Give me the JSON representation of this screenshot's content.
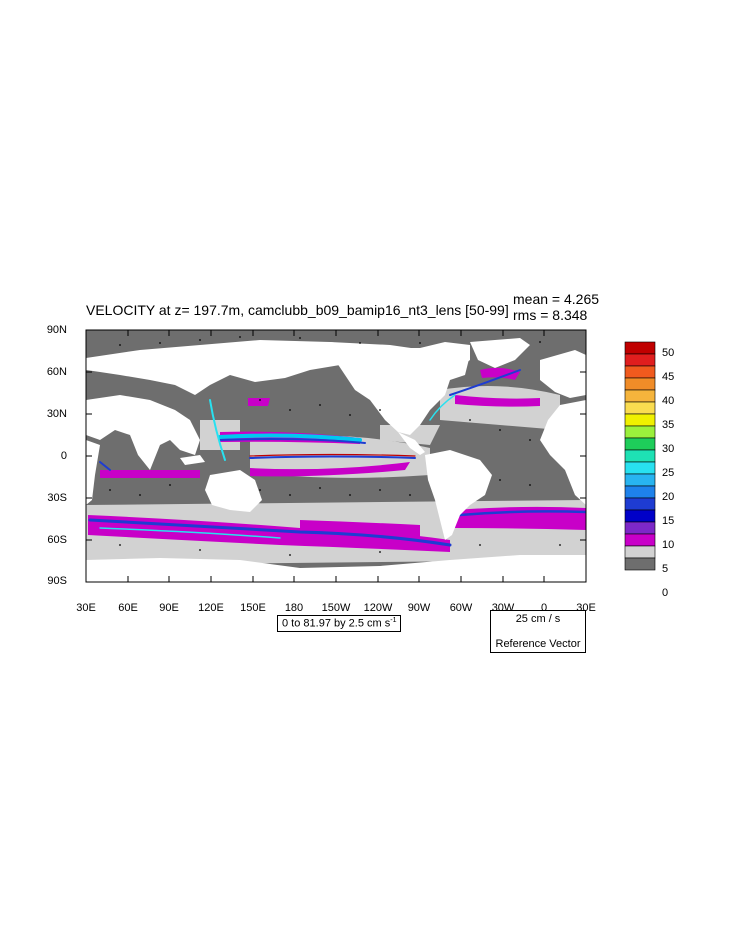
{
  "title": "VELOCITY at z= 197.7m, camclubb_b09_bamip16_nt3_lens [50-99]",
  "stats": {
    "mean": "mean = 4.265",
    "rms": "rms = 8.348"
  },
  "map": {
    "lat_ticks": [
      "90N",
      "60N",
      "30N",
      "0",
      "30S",
      "60S",
      "90S"
    ],
    "lon_ticks": [
      "30E",
      "60E",
      "90E",
      "120E",
      "150E",
      "180",
      "150W",
      "120W",
      "90W",
      "60W",
      "30W",
      "0",
      "30E"
    ]
  },
  "contour_info": "0 to 81.97 by 2.5 cm s",
  "contour_info_sup": "-1",
  "reference_vector": {
    "magnitude": "25 cm / s",
    "label": "Reference Vector"
  },
  "colorbar": {
    "labels": [
      "50",
      "45",
      "40",
      "35",
      "30",
      "25",
      "20",
      "15",
      "10",
      "5",
      "0"
    ],
    "colors": [
      "#c00000",
      "#e01e1e",
      "#f05a1e",
      "#f08c28",
      "#f5b43c",
      "#fadc50",
      "#f0f000",
      "#9bf03c",
      "#1ecd5a",
      "#1ee1b4",
      "#28e1f0",
      "#28b4f0",
      "#1e82eb",
      "#1e3cd2",
      "#0000c8",
      "#7d28c8",
      "#c800c8",
      "#d2d2d2",
      "#6e6e6e"
    ]
  }
}
